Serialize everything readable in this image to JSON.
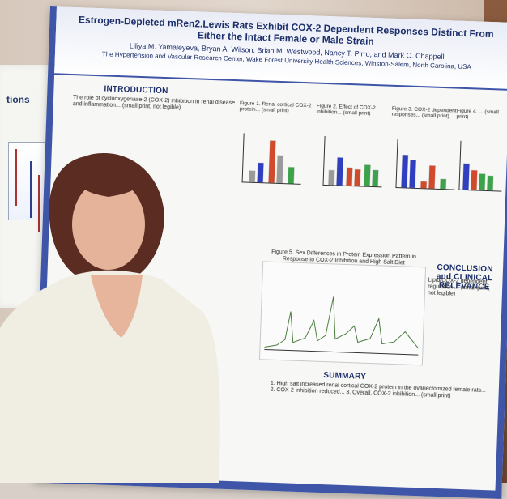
{
  "poster": {
    "title": "Estrogen-Depleted mRen2.Lewis Rats Exhibit COX-2 Dependent Responses Distinct From Either the Intact Female or Male Strain",
    "authors": "Liliya M. Yamaleyeva, Bryan A. Wilson, Brian M. Westwood, Nancy T. Pirro, and Mark C. Chappell",
    "affiliation": "The Hypertension and Vascular Research Center, Wake Forest University Health Sciences, Winston-Salem, North Carolina, USA",
    "intro_title": "INTRODUCTION",
    "intro_text": "The role of cyclooxygenase-2 (COX-2) inhibition in renal disease and inflammation... (small print, not legible)",
    "fig_captions": [
      "Figure 1. Renal cortical COX-2 protein... (small print)",
      "Figure 2. Effect of COX-2 inhibition... (small print)",
      "Figure 3. COX-2 dependent responses... (small print)",
      "Figure 4. ... (small print)"
    ],
    "mid_caption": "Figure 5. Sex Differences in Protein Expression Pattern in Response to COX-2 Inhibition and High Salt Diet",
    "conclusion_title": "CONCLUSION and CLINICAL RELEVANCE",
    "conclusion_text": "Lipid/COX-2 dependent regulation ... (small print, not legible)",
    "summary_title": "SUMMARY",
    "summary_text": "1. High salt increased renal cortical COX-2 protein in the ovariectomized female rats... 2. COX-2 inhibition reduced... 3. Overall, COX-2 inhibition... (small print)"
  },
  "left_poster": {
    "title": "tions"
  }
}
